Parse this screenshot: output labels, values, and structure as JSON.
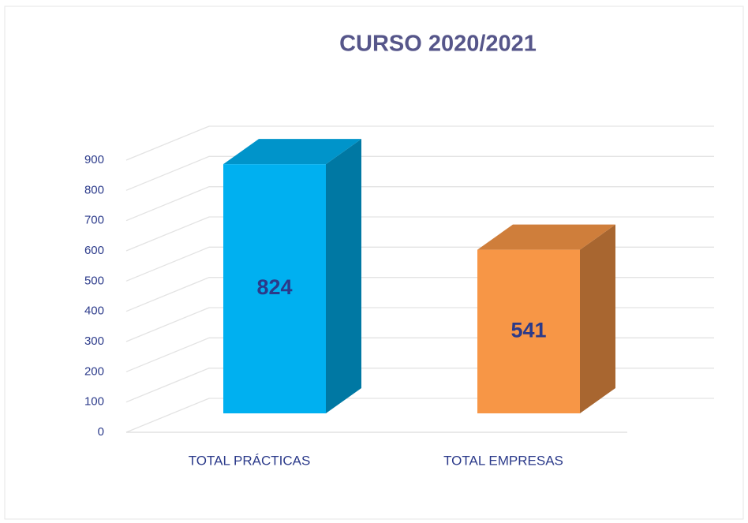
{
  "chart_data": {
    "type": "bar3d",
    "title": "CURSO 2020/2021",
    "categories": [
      "TOTAL PRÁCTICAS",
      "TOTAL EMPRESAS"
    ],
    "values": [
      824,
      541
    ],
    "colors": [
      "#00b0f0",
      "#f79646"
    ],
    "ylim": [
      0,
      900
    ],
    "yticks": [
      0,
      100,
      200,
      300,
      400,
      500,
      600,
      700,
      800,
      900
    ],
    "grid": true
  }
}
